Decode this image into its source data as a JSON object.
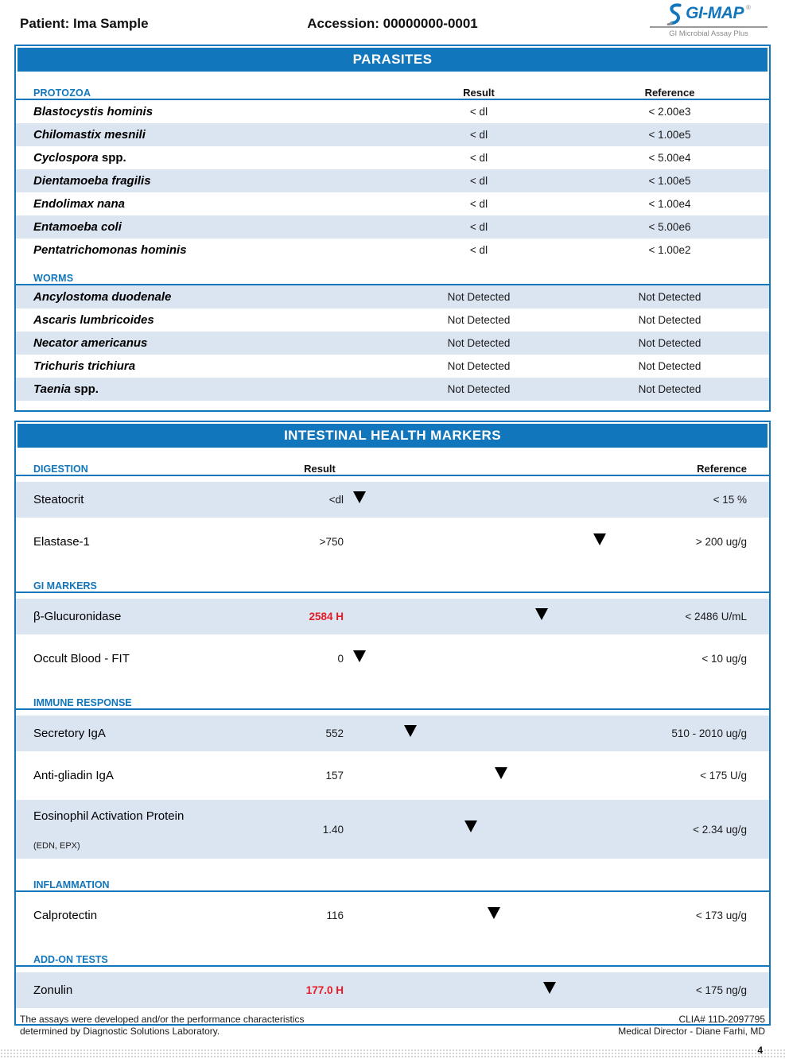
{
  "header": {
    "patient_label": "Patient: Ima Sample",
    "accession_label": "Accession: 00000000-0001",
    "logo": {
      "name": "GI-MAP",
      "registered": "®",
      "subtitle": "GI Microbial Assay Plus"
    }
  },
  "colors": {
    "accent_blue": "#1276bd",
    "row_shade": "#dbe5f2",
    "result_high_red": "#e31b23",
    "bar_green": "#b7d9aa",
    "bar_yellow": "#fce9b4",
    "bar_salmon": "#f0a88c",
    "marker_black": "#000000"
  },
  "parasites": {
    "title": "PARASITES",
    "columns": {
      "result": "Result",
      "reference": "Reference"
    },
    "groups": [
      {
        "label": "PROTOZOA",
        "show_columns": true,
        "rows": [
          {
            "name": "Blastocystis hominis",
            "suffix": "",
            "result": "< dl",
            "reference": "< 2.00e3",
            "shaded": false
          },
          {
            "name": "Chilomastix mesnili",
            "suffix": "",
            "result": "< dl",
            "reference": "< 1.00e5",
            "shaded": true
          },
          {
            "name": "Cyclospora",
            "suffix": " spp.",
            "result": "< dl",
            "reference": "< 5.00e4",
            "shaded": false
          },
          {
            "name": "Dientamoeba fragilis",
            "suffix": "",
            "result": "< dl",
            "reference": "< 1.00e5",
            "shaded": true
          },
          {
            "name": "Endolimax nana",
            "suffix": "",
            "result": "< dl",
            "reference": "< 1.00e4",
            "shaded": false
          },
          {
            "name": "Entamoeba coli",
            "suffix": "",
            "result": "< dl",
            "reference": "< 5.00e6",
            "shaded": true
          },
          {
            "name": "Pentatrichomonas hominis",
            "suffix": "",
            "result": "< dl",
            "reference": "< 1.00e2",
            "shaded": false
          }
        ]
      },
      {
        "label": "WORMS",
        "show_columns": false,
        "rows": [
          {
            "name": "Ancylostoma duodenale",
            "suffix": "",
            "result": "Not Detected",
            "reference": "Not Detected",
            "shaded": true
          },
          {
            "name": "Ascaris lumbricoides",
            "suffix": "",
            "result": "Not Detected",
            "reference": "Not Detected",
            "shaded": false
          },
          {
            "name": "Necator americanus",
            "suffix": "",
            "result": "Not Detected",
            "reference": "Not Detected",
            "shaded": true
          },
          {
            "name": "Trichuris trichiura",
            "suffix": "",
            "result": "Not Detected",
            "reference": "Not Detected",
            "shaded": false
          },
          {
            "name": "Taenia",
            "suffix": " spp.",
            "result": "Not Detected",
            "reference": "Not Detected",
            "shaded": true
          }
        ]
      }
    ]
  },
  "intestinal": {
    "title": "INTESTINAL HEALTH MARKERS",
    "columns": {
      "result": "Result",
      "reference": "Reference"
    },
    "sections": [
      {
        "label": "DIGESTION",
        "show_columns": true,
        "rows": [
          {
            "name": "Steatocrit",
            "sub": "",
            "result": "<dl",
            "result_high": false,
            "reference": "< 15 %",
            "shaded": true,
            "bar": {
              "segments": [
                [
                  "green",
                  44
                ],
                [
                  "yellow",
                  43
                ],
                [
                  "salmon",
                  13
                ]
              ],
              "marker": 2
            }
          },
          {
            "name": "Elastase-1",
            "sub": "",
            "result": ">750",
            "result_high": false,
            "reference": "> 200 ug/g",
            "shaded": false,
            "bar": {
              "segments": [
                [
                  "salmon",
                  30
                ],
                [
                  "yellow",
                  36
                ],
                [
                  "green",
                  34
                ]
              ],
              "marker": 97
            }
          }
        ]
      },
      {
        "label": "GI MARKERS",
        "show_columns": false,
        "rows": [
          {
            "name": "β-Glucuronidase",
            "sub": "",
            "result": "2584 H",
            "result_high": true,
            "reference": "< 2486 U/mL",
            "shaded": true,
            "bar": {
              "segments": [
                [
                  "green",
                  47
                ],
                [
                  "yellow",
                  26
                ],
                [
                  "salmon",
                  27
                ]
              ],
              "marker": 74
            }
          },
          {
            "name": "Occult Blood - FIT",
            "sub": "",
            "result": "0",
            "result_high": false,
            "reference": "< 10 ug/g",
            "shaded": false,
            "bar": {
              "segments": [
                [
                  "green",
                  57
                ],
                [
                  "yellow",
                  7
                ],
                [
                  "salmon",
                  36
                ]
              ],
              "marker": 2
            }
          }
        ]
      },
      {
        "label": "IMMUNE RESPONSE",
        "show_columns": false,
        "rows": [
          {
            "name": "Secretory IgA",
            "sub": "",
            "result": "552",
            "result_high": false,
            "reference": "510 - 2010 ug/g",
            "shaded": true,
            "bar": {
              "segments": [
                [
                  "salmon",
                  18
                ],
                [
                  "yellow",
                  8
                ],
                [
                  "green",
                  46
                ],
                [
                  "yellow",
                  10
                ],
                [
                  "salmon",
                  18
                ]
              ],
              "marker": 22
            }
          },
          {
            "name": "Anti-gliadin IgA",
            "sub": "",
            "result": "157",
            "result_high": false,
            "reference": "< 175 U/g",
            "shaded": false,
            "bar": {
              "segments": [
                [
                  "green",
                  52
                ],
                [
                  "yellow",
                  15
                ],
                [
                  "salmon",
                  33
                ]
              ],
              "marker": 58
            }
          },
          {
            "name": "Eosinophil Activation Protein",
            "sub": "(EDN, EPX)",
            "result": "1.40",
            "result_high": false,
            "reference": "< 2.34 ug/g",
            "shaded": true,
            "bar": {
              "segments": [
                [
                  "green",
                  60
                ],
                [
                  "yellow",
                  23
                ],
                [
                  "salmon",
                  17
                ]
              ],
              "marker": 46
            }
          }
        ]
      },
      {
        "label": "INFLAMMATION",
        "show_columns": false,
        "rows": [
          {
            "name": "Calprotectin",
            "sub": "",
            "result": "116",
            "result_high": false,
            "reference": "< 173 ug/g",
            "shaded": false,
            "bar": {
              "segments": [
                [
                  "green",
                  45
                ],
                [
                  "yellow",
                  30
                ],
                [
                  "salmon",
                  25
                ]
              ],
              "marker": 55
            }
          }
        ]
      },
      {
        "label": "ADD-ON TESTS",
        "show_columns": false,
        "rows": [
          {
            "name": "Zonulin",
            "sub": "",
            "result": "177.0 H",
            "result_high": true,
            "reference": "< 175 ng/g",
            "shaded": true,
            "bar": {
              "segments": [
                [
                  "green",
                  45
                ],
                [
                  "yellow",
                  32
                ],
                [
                  "salmon",
                  23
                ]
              ],
              "marker": 77
            }
          }
        ]
      }
    ]
  },
  "footer": {
    "disclaimer_line1": "The assays were developed and/or the performance characteristics",
    "disclaimer_line2": "determined by Diagnostic Solutions Laboratory.",
    "clia": "CLIA# 11D-2097795",
    "medical_director": "Medical Director - Diane Farhi, MD",
    "page_number": "4"
  }
}
